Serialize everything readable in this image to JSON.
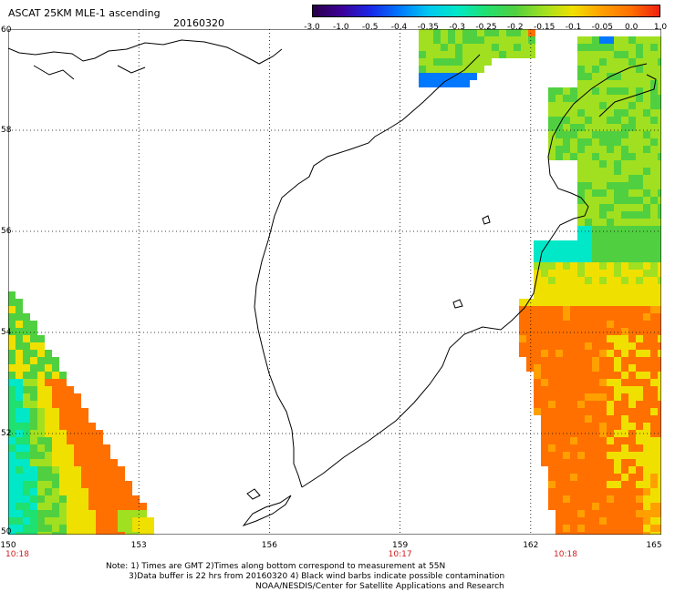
{
  "header": {
    "title": "ASCAT 25KM MLE-1 ascending",
    "date": "20160320"
  },
  "colorbar": {
    "colors": [
      "#2a0048",
      "#3c0098",
      "#1a28e8",
      "#0078ff",
      "#00c8f0",
      "#00e8c8",
      "#20e070",
      "#50d040",
      "#a0e020",
      "#f0e000",
      "#ffa000",
      "#ff7000",
      "#f02010"
    ],
    "labels": [
      "-3.0",
      "-1.0",
      "-0.5",
      "-0.4",
      "-0.35",
      "-0.3",
      "-0.25",
      "-0.2",
      "-0.15",
      "-0.1",
      "-0.05",
      "0.0",
      "1.0"
    ]
  },
  "map": {
    "lat_range": [
      50,
      60
    ],
    "lon_range": [
      150,
      165
    ],
    "grid": true,
    "lat_ticks": [
      "60",
      "58",
      "56",
      "54",
      "52",
      "50"
    ],
    "lon_ticks": [
      "150",
      "153",
      "156",
      "159",
      "162",
      "165"
    ],
    "pass_times": [
      {
        "lon": 150,
        "label": "10:18"
      },
      {
        "lon": 159,
        "label": "10:17"
      },
      {
        "lon": 162.8,
        "label": "10:18"
      }
    ],
    "swaths": {
      "west": {
        "value_scale": "colorbar index"
      },
      "north_central": {
        "value_scale": "colorbar index"
      },
      "east": {
        "value_scale": "colorbar index"
      }
    }
  },
  "notes": {
    "line1": "Note: 1) Times are GMT 2)Times along bottom correspond to measurement at 55N",
    "line2": "3)Data buffer is 22 hrs from 20160320 4) Black wind barbs indicate possible contamination",
    "line3": "NOAA/NESDIS/Center for Satellite Applications and Research"
  }
}
